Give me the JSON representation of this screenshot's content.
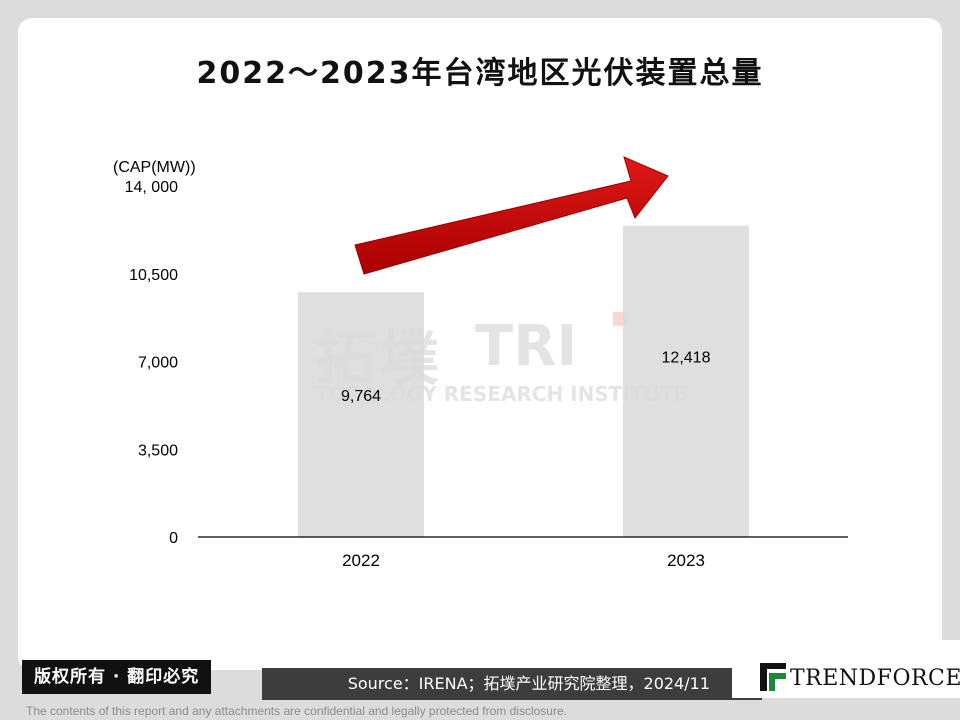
{
  "title": "2022～2023年台湾地区光伏装置总量",
  "watermark": {
    "name_cn": "拓墣",
    "brand": "TRI",
    "name_en": "TOPOLOGY RESEARCH INSTITUTE"
  },
  "chart_data": {
    "type": "bar",
    "unit_label": "(CAP(MW))",
    "categories": [
      "2022",
      "2023"
    ],
    "values": [
      9764,
      12418
    ],
    "data_labels": [
      "9,764",
      "12,418"
    ],
    "ylim": [
      0,
      14000
    ],
    "yticks": [
      0,
      3500,
      7000,
      10500,
      14000
    ],
    "ytick_labels": [
      "0",
      "3,500",
      "7,000",
      "10,500",
      "14, 000"
    ],
    "bar_color": "#d9d9d9",
    "arrow_color": "#cc0000",
    "grid": false
  },
  "footer": {
    "copyright": "版权所有 · 翻印必究",
    "source": "Source：IRENA；拓墣产业研究院整理，2024/11",
    "logo_text": "TRENDFORCE",
    "disclaimer": "The contents of this report and any attachments are confidential and legally protected from disclosure."
  }
}
